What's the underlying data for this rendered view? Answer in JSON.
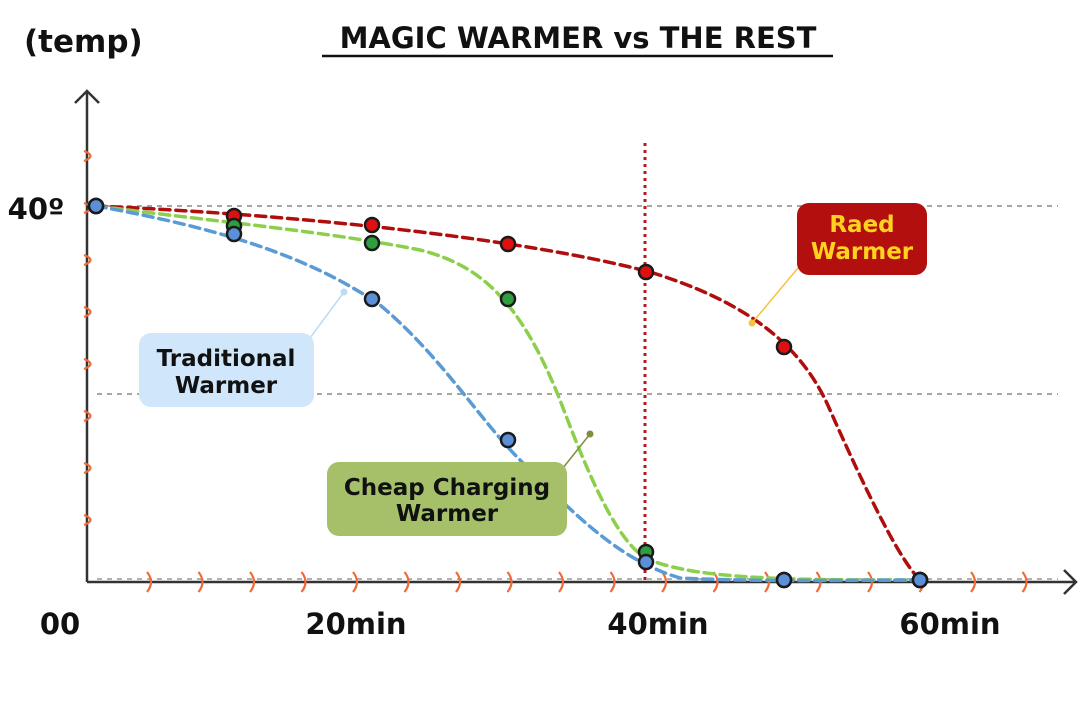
{
  "chart_data": {
    "type": "line",
    "title": "MAGIC WARMER vs THE REST",
    "ylabel": "(temp)",
    "xlabel": "",
    "x_tick_labels": [
      {
        "x": 0,
        "label": "00"
      },
      {
        "x": 20,
        "label": "20min"
      },
      {
        "x": 40,
        "label": "40min"
      },
      {
        "x": 60,
        "label": "60min"
      }
    ],
    "y_tick_labels": [
      {
        "y": 40,
        "label": "40º"
      }
    ],
    "xlim": [
      -1,
      71
    ],
    "ylim": [
      0,
      50
    ],
    "reference_lines": {
      "horizontal": [
        40,
        20
      ],
      "vertical": [
        40
      ]
    },
    "series": [
      {
        "key": "raed",
        "name": "Raed Warmer",
        "color": "#b00d0d",
        "marker_color": "#e01010",
        "line_color": "#b00d0d",
        "points": [
          [
            0,
            40
          ],
          [
            10,
            39
          ],
          [
            20,
            38
          ],
          [
            30,
            36
          ],
          [
            40,
            33
          ],
          [
            50,
            25
          ],
          [
            60,
            0
          ]
        ]
      },
      {
        "key": "cheap",
        "name": "Cheap Charging Warmer",
        "color": "#8bc34a",
        "marker_color": "#2e9e3e",
        "line_color": "#8bcf4a",
        "points": [
          [
            0,
            40
          ],
          [
            10,
            38
          ],
          [
            20,
            36
          ],
          [
            30,
            30
          ],
          [
            40,
            3
          ],
          [
            50,
            0
          ],
          [
            60,
            0
          ]
        ]
      },
      {
        "key": "trad",
        "name": "Traditional Warmer",
        "color": "#5b9bd5",
        "marker_color": "#5b8fd8",
        "line_color": "#5b9bd5",
        "points": [
          [
            0,
            40
          ],
          [
            10,
            37
          ],
          [
            20,
            30
          ],
          [
            30,
            15
          ],
          [
            40,
            2
          ],
          [
            50,
            0
          ],
          [
            60,
            0
          ]
        ]
      }
    ],
    "callouts": [
      {
        "series": "raed",
        "lines": [
          "Raed",
          "Warmer"
        ],
        "bg": "#b30f0f",
        "text_color": "#ffd21f"
      },
      {
        "series": "trad",
        "lines": [
          "Traditional",
          "Warmer"
        ],
        "bg": "#cfe6fb",
        "text_color": "#111111"
      },
      {
        "series": "cheap",
        "lines": [
          "Cheap Charging",
          "Warmer"
        ],
        "bg": "#a6c06a",
        "text_color": "#111111"
      }
    ]
  }
}
